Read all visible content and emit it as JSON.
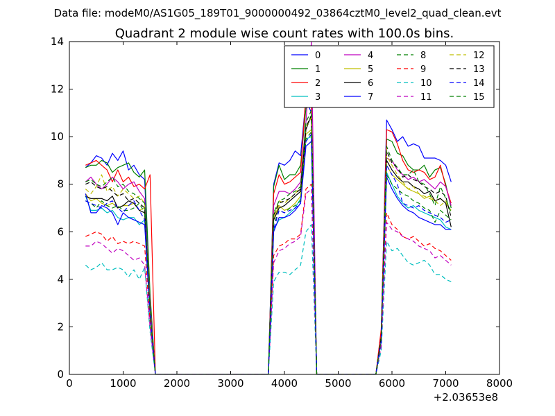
{
  "header": {
    "data_file": "Data file: modeM0/AS1G05_189T01_9000000492_03864cztM0_level2_quad_clean.evt"
  },
  "chart_data": {
    "type": "line",
    "title": "Quadrant 2 module wise count rates with 100.0s bins.",
    "xlabel": "",
    "ylabel": "",
    "x_offset_label": "+2.03653e8",
    "xlim": [
      0,
      8000
    ],
    "ylim": [
      0,
      14
    ],
    "x_ticks": [
      0,
      1000,
      2000,
      3000,
      4000,
      5000,
      6000,
      7000,
      8000
    ],
    "y_ticks": [
      0,
      2,
      4,
      6,
      8,
      10,
      12,
      14
    ],
    "grid": false,
    "legend": {
      "placement": "top-right",
      "columns": 4
    },
    "x": [
      300,
      400,
      500,
      600,
      700,
      800,
      900,
      1000,
      1100,
      1200,
      1300,
      1400,
      1500,
      1600,
      3700,
      3800,
      3900,
      4000,
      4100,
      4200,
      4300,
      4400,
      4500,
      4600,
      5700,
      5800,
      5900,
      6000,
      6100,
      6200,
      6300,
      6400,
      6500,
      6600,
      6700,
      6800,
      6900,
      7000,
      7100
    ],
    "series": [
      {
        "name": "0",
        "color": "#0000ff",
        "style": "solid",
        "gaps": [
          [
            1600,
            3700
          ],
          [
            4600,
            5700
          ]
        ],
        "values": [
          8.7,
          8.9,
          9.2,
          9.1,
          8.8,
          9.3,
          9.0,
          9.4,
          8.6,
          8.8,
          8.4,
          8.2,
          3.0,
          0,
          0,
          8.0,
          8.9,
          8.8,
          9.0,
          9.4,
          9.2,
          11.6,
          11.0,
          0,
          0,
          1.8,
          10.7,
          10.3,
          9.8,
          10.0,
          9.6,
          9.7,
          9.6,
          9.1,
          9.1,
          9.1,
          9.0,
          8.8,
          8.1
        ]
      },
      {
        "name": "1",
        "color": "#008000",
        "style": "solid",
        "gaps": [
          [
            1600,
            3700
          ],
          [
            4600,
            5700
          ]
        ],
        "values": [
          8.7,
          8.8,
          8.8,
          9.0,
          8.9,
          8.5,
          8.7,
          8.8,
          8.9,
          8.5,
          8.3,
          8.6,
          3.4,
          0,
          0,
          7.9,
          8.8,
          8.2,
          8.4,
          8.4,
          8.8,
          11.2,
          11.3,
          0,
          0,
          1.7,
          9.9,
          9.8,
          9.3,
          9.2,
          8.8,
          8.6,
          8.6,
          8.8,
          8.3,
          8.6,
          8.7,
          8.0,
          7.0
        ]
      },
      {
        "name": "2",
        "color": "#ff0000",
        "style": "solid",
        "gaps": [
          [
            1600,
            3700
          ],
          [
            4600,
            5700
          ]
        ],
        "values": [
          8.8,
          8.9,
          9.0,
          8.8,
          8.6,
          8.1,
          8.6,
          8.1,
          8.3,
          7.9,
          8.0,
          7.8,
          8.4,
          0,
          0,
          7.6,
          8.4,
          8.0,
          8.1,
          8.3,
          8.5,
          11.8,
          11.2,
          0,
          0,
          1.9,
          10.3,
          10.2,
          9.7,
          9.0,
          8.6,
          8.5,
          8.6,
          8.5,
          8.2,
          8.3,
          8.8,
          7.9,
          7.2
        ]
      },
      {
        "name": "3",
        "color": "#00bfbf",
        "style": "solid",
        "gaps": [
          [
            1600,
            3700
          ],
          [
            4600,
            5700
          ]
        ],
        "values": [
          7.5,
          6.9,
          6.9,
          7.0,
          6.8,
          6.9,
          6.6,
          6.5,
          6.6,
          6.6,
          6.3,
          6.5,
          2.5,
          0,
          0,
          6.1,
          6.5,
          6.6,
          6.8,
          7.0,
          7.4,
          9.9,
          10.0,
          0,
          0,
          1.4,
          8.5,
          8.0,
          7.5,
          7.2,
          7.0,
          7.1,
          6.9,
          6.8,
          6.7,
          6.6,
          6.5,
          6.2,
          6.1
        ]
      },
      {
        "name": "4",
        "color": "#bf00bf",
        "style": "solid",
        "gaps": [
          [
            1600,
            3700
          ],
          [
            4600,
            5700
          ]
        ],
        "values": [
          8.1,
          8.3,
          8.0,
          7.8,
          8.0,
          8.3,
          8.1,
          7.8,
          8.0,
          8.1,
          7.7,
          7.4,
          3.0,
          0,
          0,
          7.1,
          7.7,
          7.7,
          7.6,
          7.8,
          8.1,
          10.6,
          14.0,
          0,
          0,
          1.6,
          9.1,
          9.0,
          8.6,
          8.4,
          8.2,
          8.3,
          8.1,
          8.2,
          8.0,
          7.8,
          8.1,
          7.9,
          7.1
        ]
      },
      {
        "name": "5",
        "color": "#bfbf00",
        "style": "solid",
        "gaps": [
          [
            1600,
            3700
          ],
          [
            4600,
            5700
          ]
        ],
        "values": [
          7.6,
          7.3,
          7.4,
          7.2,
          7.1,
          7.2,
          7.0,
          7.1,
          7.1,
          7.2,
          6.9,
          7.0,
          2.7,
          0,
          0,
          6.6,
          7.1,
          6.9,
          7.0,
          7.2,
          7.5,
          10.1,
          10.3,
          0,
          0,
          1.4,
          8.8,
          8.4,
          8.2,
          8.0,
          7.8,
          7.7,
          7.6,
          7.4,
          7.5,
          7.3,
          7.4,
          7.2,
          6.9
        ]
      },
      {
        "name": "6",
        "color": "#000000",
        "style": "solid",
        "gaps": [
          [
            1600,
            3700
          ],
          [
            4600,
            5700
          ]
        ],
        "values": [
          7.5,
          7.4,
          7.4,
          7.4,
          7.3,
          7.5,
          7.0,
          7.1,
          7.3,
          7.2,
          6.9,
          6.8,
          2.6,
          0,
          0,
          6.5,
          7.0,
          7.1,
          7.3,
          7.5,
          7.7,
          10.3,
          10.9,
          0,
          0,
          1.5,
          9.0,
          8.6,
          8.3,
          8.1,
          8.1,
          7.9,
          7.8,
          7.6,
          7.7,
          7.3,
          7.4,
          7.2,
          6.2
        ]
      },
      {
        "name": "7",
        "color": "#0000ff",
        "style": "solid",
        "gaps": [
          [
            1600,
            3700
          ],
          [
            4600,
            5700
          ]
        ],
        "values": [
          7.6,
          6.8,
          6.8,
          7.1,
          7.0,
          6.8,
          6.3,
          6.8,
          6.6,
          6.5,
          6.4,
          6.3,
          2.5,
          0,
          0,
          6.0,
          6.6,
          6.6,
          6.7,
          6.9,
          7.2,
          9.6,
          9.8,
          0,
          0,
          1.4,
          8.3,
          7.8,
          7.4,
          7.1,
          6.9,
          6.8,
          6.6,
          6.5,
          6.4,
          6.3,
          6.3,
          6.1,
          6.1
        ]
      },
      {
        "name": "8",
        "color": "#008000",
        "style": "dashed",
        "gaps": [
          [
            1600,
            3700
          ],
          [
            4600,
            5700
          ]
        ],
        "values": [
          7.3,
          7.2,
          7.0,
          7.3,
          7.1,
          7.0,
          7.1,
          6.9,
          6.9,
          7.0,
          7.2,
          6.8,
          2.6,
          0,
          0,
          6.3,
          6.9,
          6.8,
          7.0,
          7.1,
          7.3,
          9.9,
          10.2,
          0,
          0,
          1.5,
          8.4,
          8.0,
          7.8,
          7.6,
          7.5,
          7.3,
          7.2,
          7.0,
          6.9,
          6.4,
          6.9,
          6.7,
          6.5
        ]
      },
      {
        "name": "9",
        "color": "#ff0000",
        "style": "dashed",
        "gaps": [
          [
            1600,
            3700
          ],
          [
            4600,
            5700
          ]
        ],
        "values": [
          5.8,
          5.9,
          6.0,
          5.9,
          5.6,
          5.8,
          5.5,
          5.6,
          5.5,
          5.6,
          5.5,
          5.4,
          2.2,
          0,
          0,
          5.0,
          5.4,
          5.5,
          5.7,
          5.7,
          5.9,
          7.8,
          8.0,
          0,
          0,
          1.2,
          6.8,
          6.3,
          6.1,
          5.8,
          5.7,
          5.8,
          5.6,
          5.4,
          5.5,
          5.3,
          5.2,
          5.0,
          4.8
        ]
      },
      {
        "name": "10",
        "color": "#00bfbf",
        "style": "dashed",
        "gaps": [
          [
            1600,
            3700
          ],
          [
            4600,
            5700
          ]
        ],
        "values": [
          4.6,
          4.4,
          4.5,
          4.7,
          4.4,
          4.4,
          4.5,
          4.4,
          4.1,
          4.4,
          4.0,
          4.5,
          1.8,
          0,
          0,
          3.9,
          4.3,
          4.3,
          4.2,
          4.4,
          4.6,
          6.0,
          6.3,
          0,
          0,
          1.0,
          5.6,
          5.2,
          5.3,
          5.0,
          4.7,
          4.6,
          4.7,
          4.8,
          4.6,
          4.2,
          4.2,
          4.0,
          3.9
        ]
      },
      {
        "name": "11",
        "color": "#bf00bf",
        "style": "dashed",
        "gaps": [
          [
            1600,
            3700
          ],
          [
            4600,
            5700
          ]
        ],
        "values": [
          5.4,
          5.4,
          5.6,
          5.5,
          5.3,
          5.1,
          5.3,
          5.2,
          5.0,
          4.8,
          4.9,
          4.6,
          2.0,
          0,
          0,
          4.7,
          5.2,
          5.3,
          5.5,
          5.6,
          5.8,
          7.6,
          7.8,
          0,
          0,
          1.2,
          6.4,
          6.1,
          6.0,
          5.8,
          5.7,
          5.6,
          5.4,
          5.3,
          5.2,
          4.9,
          5.0,
          4.8,
          4.6
        ]
      },
      {
        "name": "12",
        "color": "#bfbf00",
        "style": "dashed",
        "gaps": [
          [
            1600,
            3700
          ],
          [
            4600,
            5700
          ]
        ],
        "values": [
          7.8,
          7.6,
          7.9,
          8.4,
          7.7,
          7.9,
          7.5,
          7.8,
          7.6,
          7.4,
          7.5,
          7.2,
          2.8,
          0,
          0,
          6.7,
          7.3,
          7.2,
          7.4,
          7.6,
          7.9,
          10.4,
          10.8,
          0,
          0,
          1.5,
          9.2,
          8.8,
          8.4,
          8.1,
          7.8,
          7.9,
          7.6,
          7.5,
          7.4,
          7.3,
          7.1,
          7.3,
          6.8
        ]
      },
      {
        "name": "13",
        "color": "#000000",
        "style": "dashed",
        "gaps": [
          [
            1600,
            3700
          ],
          [
            4600,
            5700
          ]
        ],
        "values": [
          8.0,
          8.1,
          7.9,
          7.8,
          7.9,
          7.7,
          7.5,
          7.6,
          7.3,
          7.4,
          7.2,
          7.0,
          2.7,
          0,
          0,
          6.7,
          7.2,
          7.3,
          7.4,
          7.6,
          7.8,
          10.4,
          10.9,
          0,
          0,
          1.6,
          9.4,
          8.9,
          8.7,
          8.3,
          8.4,
          8.2,
          8.1,
          7.9,
          7.8,
          7.6,
          7.7,
          7.5,
          6.6
        ]
      },
      {
        "name": "14",
        "color": "#0000ff",
        "style": "dashed",
        "gaps": [
          [
            1600,
            3700
          ],
          [
            4600,
            5700
          ],
          [
            6300,
            6400
          ]
        ],
        "values": [
          7.3,
          7.2,
          7.1,
          7.0,
          7.2,
          7.3,
          7.0,
          6.8,
          7.1,
          7.3,
          6.9,
          6.5,
          2.6,
          0,
          0,
          6.1,
          6.9,
          6.8,
          6.9,
          7.0,
          7.2,
          9.8,
          10.1,
          0,
          0,
          1.4,
          8.8,
          8.4,
          8.0,
          7.2,
          7.1,
          7.0,
          7.1,
          6.9,
          6.8,
          6.7,
          6.6,
          6.4,
          6.5
        ]
      },
      {
        "name": "15",
        "color": "#008000",
        "style": "dashed",
        "gaps": [
          [
            1600,
            3700
          ],
          [
            4600,
            5700
          ]
        ],
        "values": [
          8.1,
          8.2,
          8.0,
          7.9,
          8.1,
          8.3,
          7.9,
          8.0,
          7.7,
          7.6,
          7.4,
          7.2,
          2.7,
          0,
          0,
          6.8,
          7.3,
          7.4,
          7.6,
          7.7,
          7.9,
          10.6,
          11.1,
          0,
          0,
          1.5,
          9.6,
          9.0,
          8.7,
          8.4,
          8.4,
          8.6,
          8.1,
          8.0,
          7.6,
          7.1,
          7.9,
          7.4,
          6.8
        ]
      }
    ]
  }
}
